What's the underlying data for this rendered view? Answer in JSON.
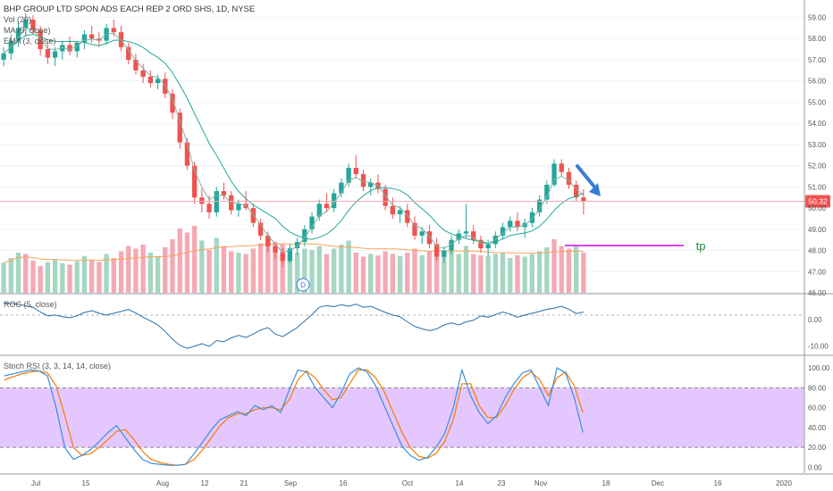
{
  "header": {
    "title": "BHP GROUP LTD SPON ADS EACH REP 2 ORD SHS, 1D, NYSE",
    "indicators": [
      "Vol (20)",
      "MA (9, close)",
      "EMA (3, close)"
    ]
  },
  "colors": {
    "up": "#26a69a",
    "down": "#ef5350",
    "vol_up": "#a5d6c1",
    "vol_down": "#f4a9b4",
    "ma": "#26a69a",
    "vol_ma": "#f7a35c",
    "price_line": "#f4a9b4",
    "price_tag": "#ef5350",
    "tp": "#e040fb",
    "arrow": "#3a7bd5",
    "stoch_band": "#e5c7ff",
    "stoch_k": "#3a8fd9",
    "stoch_d": "#f57c00",
    "roc": "#2a6fa8",
    "grid": "#f0f3fa"
  },
  "chart_data": [
    {
      "type": "candlestick",
      "panel": "price",
      "ylim": [
        46,
        59.4
      ],
      "y_ticks": [
        "59.00",
        "58.00",
        "57.00",
        "56.00",
        "55.00",
        "54.00",
        "53.00",
        "52.00",
        "51.00",
        "50.00",
        "49.00",
        "48.00",
        "47.00",
        "46.00"
      ],
      "x_ticks": [
        "Jul",
        "15",
        "Aug",
        "12",
        "21",
        "Sep",
        "16",
        "Oct",
        "14",
        "23",
        "Nov",
        "18",
        "Dec",
        "16",
        "2020"
      ],
      "last_price": "50.32",
      "annotation": "tp",
      "marker": "D",
      "candles": [
        [
          57.0,
          57.6,
          56.7,
          57.3
        ],
        [
          57.3,
          58.2,
          57.0,
          57.9
        ],
        [
          57.9,
          58.8,
          57.6,
          58.5
        ],
        [
          58.5,
          59.2,
          58.1,
          58.9
        ],
        [
          58.9,
          59.1,
          58.2,
          58.4
        ],
        [
          58.4,
          58.6,
          57.2,
          57.5
        ],
        [
          57.5,
          57.8,
          56.8,
          57.1
        ],
        [
          57.1,
          57.6,
          56.7,
          57.4
        ],
        [
          57.4,
          57.9,
          57.0,
          57.7
        ],
        [
          57.7,
          58.1,
          57.2,
          57.4
        ],
        [
          57.4,
          57.9,
          57.1,
          57.8
        ],
        [
          57.8,
          58.4,
          57.5,
          58.2
        ],
        [
          58.2,
          58.6,
          57.8,
          58.0
        ],
        [
          58.0,
          58.3,
          57.6,
          57.9
        ],
        [
          57.9,
          58.7,
          57.7,
          58.5
        ],
        [
          58.5,
          58.9,
          58.1,
          58.3
        ],
        [
          58.3,
          58.6,
          57.4,
          57.6
        ],
        [
          57.6,
          57.8,
          56.8,
          57.0
        ],
        [
          57.0,
          57.3,
          56.3,
          56.5
        ],
        [
          56.5,
          56.8,
          55.9,
          56.2
        ],
        [
          56.2,
          56.5,
          55.7,
          55.9
        ],
        [
          55.9,
          56.3,
          55.6,
          56.1
        ],
        [
          56.1,
          56.4,
          55.2,
          55.4
        ],
        [
          55.4,
          55.6,
          54.2,
          54.5
        ],
        [
          54.5,
          54.7,
          52.8,
          53.1
        ],
        [
          53.1,
          53.3,
          51.8,
          52.0
        ],
        [
          52.0,
          52.2,
          50.2,
          50.5
        ],
        [
          50.5,
          50.9,
          49.8,
          50.2
        ],
        [
          50.2,
          50.6,
          49.5,
          49.8
        ],
        [
          49.8,
          51.0,
          49.6,
          50.8
        ],
        [
          50.8,
          51.2,
          50.4,
          50.6
        ],
        [
          50.6,
          50.8,
          49.7,
          49.9
        ],
        [
          49.9,
          50.4,
          49.6,
          50.2
        ],
        [
          50.2,
          50.8,
          49.9,
          50.0
        ],
        [
          50.0,
          50.2,
          49.1,
          49.3
        ],
        [
          49.3,
          49.5,
          48.5,
          48.7
        ],
        [
          48.7,
          48.9,
          47.9,
          48.2
        ],
        [
          48.2,
          48.4,
          47.6,
          47.9
        ],
        [
          47.9,
          48.1,
          47.2,
          47.5
        ],
        [
          47.5,
          48.3,
          47.4,
          48.1
        ],
        [
          48.1,
          48.6,
          47.8,
          48.4
        ],
        [
          48.4,
          49.2,
          48.2,
          49.0
        ],
        [
          49.0,
          49.8,
          48.8,
          49.6
        ],
        [
          49.6,
          50.4,
          49.4,
          50.2
        ],
        [
          50.2,
          50.7,
          49.8,
          50.0
        ],
        [
          50.0,
          50.9,
          49.8,
          50.7
        ],
        [
          50.7,
          51.4,
          50.5,
          51.2
        ],
        [
          51.2,
          52.1,
          51.0,
          51.9
        ],
        [
          51.9,
          52.5,
          51.4,
          51.6
        ],
        [
          51.6,
          51.8,
          50.8,
          51.0
        ],
        [
          51.0,
          51.4,
          50.6,
          51.2
        ],
        [
          51.2,
          51.6,
          50.7,
          50.9
        ],
        [
          50.9,
          51.1,
          49.9,
          50.1
        ],
        [
          50.1,
          50.5,
          49.5,
          49.7
        ],
        [
          49.7,
          50.1,
          49.3,
          49.9
        ],
        [
          49.9,
          50.2,
          49.1,
          49.3
        ],
        [
          49.3,
          49.6,
          48.5,
          48.7
        ],
        [
          48.7,
          49.1,
          48.3,
          48.9
        ],
        [
          48.9,
          49.2,
          48.1,
          48.3
        ],
        [
          48.3,
          48.6,
          47.5,
          47.7
        ],
        [
          47.7,
          48.2,
          47.4,
          48.0
        ],
        [
          48.0,
          48.7,
          47.8,
          48.5
        ],
        [
          48.5,
          49.0,
          48.3,
          48.8
        ],
        [
          48.8,
          50.2,
          48.6,
          48.9
        ],
        [
          48.9,
          49.2,
          48.3,
          48.5
        ],
        [
          48.5,
          48.7,
          47.9,
          48.1
        ],
        [
          48.1,
          48.5,
          47.7,
          48.3
        ],
        [
          48.3,
          48.9,
          48.1,
          48.7
        ],
        [
          48.7,
          49.3,
          48.5,
          49.1
        ],
        [
          49.1,
          49.6,
          48.9,
          49.4
        ],
        [
          49.4,
          49.8,
          48.9,
          49.1
        ],
        [
          49.1,
          49.5,
          48.6,
          49.3
        ],
        [
          49.3,
          50.0,
          49.1,
          49.8
        ],
        [
          49.8,
          50.6,
          49.6,
          50.4
        ],
        [
          50.4,
          51.3,
          50.2,
          51.1
        ],
        [
          51.1,
          52.3,
          51.0,
          52.1
        ],
        [
          52.1,
          52.3,
          51.5,
          51.7
        ],
        [
          51.7,
          51.9,
          50.9,
          51.1
        ],
        [
          51.1,
          51.3,
          50.3,
          50.5
        ],
        [
          50.5,
          50.9,
          49.7,
          50.3
        ]
      ],
      "volume": [
        [
          45,
          1
        ],
        [
          52,
          1
        ],
        [
          60,
          1
        ],
        [
          58,
          0
        ],
        [
          48,
          0
        ],
        [
          40,
          0
        ],
        [
          46,
          1
        ],
        [
          50,
          1
        ],
        [
          44,
          1
        ],
        [
          42,
          0
        ],
        [
          47,
          1
        ],
        [
          55,
          1
        ],
        [
          49,
          0
        ],
        [
          46,
          0
        ],
        [
          58,
          1
        ],
        [
          52,
          0
        ],
        [
          62,
          0
        ],
        [
          70,
          0
        ],
        [
          66,
          0
        ],
        [
          72,
          0
        ],
        [
          60,
          1
        ],
        [
          55,
          1
        ],
        [
          68,
          0
        ],
        [
          80,
          0
        ],
        [
          96,
          0
        ],
        [
          90,
          0
        ],
        [
          100,
          0
        ],
        [
          78,
          1
        ],
        [
          64,
          0
        ],
        [
          82,
          1
        ],
        [
          70,
          0
        ],
        [
          62,
          0
        ],
        [
          60,
          1
        ],
        [
          58,
          0
        ],
        [
          66,
          0
        ],
        [
          74,
          0
        ],
        [
          82,
          0
        ],
        [
          76,
          0
        ],
        [
          72,
          0
        ],
        [
          62,
          1
        ],
        [
          60,
          1
        ],
        [
          66,
          1
        ],
        [
          64,
          1
        ],
        [
          70,
          1
        ],
        [
          58,
          0
        ],
        [
          66,
          1
        ],
        [
          72,
          1
        ],
        [
          78,
          1
        ],
        [
          60,
          0
        ],
        [
          54,
          0
        ],
        [
          58,
          1
        ],
        [
          56,
          0
        ],
        [
          62,
          0
        ],
        [
          58,
          0
        ],
        [
          55,
          1
        ],
        [
          60,
          0
        ],
        [
          66,
          0
        ],
        [
          56,
          1
        ],
        [
          62,
          0
        ],
        [
          72,
          0
        ],
        [
          60,
          1
        ],
        [
          64,
          1
        ],
        [
          58,
          1
        ],
        [
          70,
          1
        ],
        [
          58,
          0
        ],
        [
          56,
          0
        ],
        [
          55,
          1
        ],
        [
          58,
          1
        ],
        [
          60,
          1
        ],
        [
          52,
          1
        ],
        [
          56,
          0
        ],
        [
          54,
          1
        ],
        [
          58,
          1
        ],
        [
          62,
          1
        ],
        [
          68,
          1
        ],
        [
          80,
          0
        ],
        [
          70,
          0
        ],
        [
          66,
          0
        ],
        [
          72,
          1
        ],
        [
          60,
          0
        ]
      ]
    },
    {
      "type": "line",
      "panel": "ROC (5, close)",
      "ylim": [
        -13,
        9
      ],
      "y_ticks": [
        "0.00",
        "-10.00"
      ],
      "values": [
        6.5,
        6.2,
        6.0,
        5.4,
        4.8,
        3.0,
        1.5,
        1.8,
        1.2,
        0.8,
        1.5,
        2.8,
        3.5,
        2.5,
        1.8,
        2.5,
        3.2,
        4.0,
        2.6,
        1.0,
        -0.5,
        -2.0,
        -4.5,
        -7.5,
        -9.8,
        -11.0,
        -10.2,
        -9.2,
        -10.3,
        -8.0,
        -8.5,
        -7.0,
        -6.0,
        -6.8,
        -5.5,
        -4.0,
        -3.0,
        -5.5,
        -6.5,
        -4.8,
        -3.0,
        -0.5,
        2.0,
        4.8,
        5.5,
        5.0,
        5.8,
        5.2,
        6.0,
        4.8,
        5.2,
        4.0,
        2.8,
        1.8,
        1.2,
        -0.8,
        -2.5,
        -3.5,
        -4.2,
        -3.5,
        -2.0,
        -1.2,
        -2.0,
        -0.8,
        -0.2,
        1.5,
        1.0,
        2.0,
        3.0,
        2.2,
        1.0,
        1.8,
        2.5,
        3.2,
        4.0,
        4.5,
        5.2,
        4.0,
        2.4,
        3.0
      ]
    },
    {
      "type": "line",
      "panel": "Stoch RSI (3, 3, 14, 14, close)",
      "ylim": [
        -5,
        110
      ],
      "y_ticks": [
        "100.00",
        "80.00",
        "60.00",
        "40.00",
        "20.00",
        "0.00"
      ],
      "band": [
        20,
        80
      ],
      "series": [
        {
          "name": "K",
          "values": [
            92,
            94,
            96,
            98,
            97,
            92,
            60,
            20,
            8,
            12,
            18,
            26,
            35,
            42,
            30,
            18,
            8,
            4,
            3,
            2,
            2,
            3,
            14,
            26,
            38,
            48,
            52,
            56,
            52,
            62,
            58,
            62,
            55,
            78,
            98,
            96,
            80,
            70,
            60,
            75,
            94,
            100,
            96,
            82,
            62,
            42,
            22,
            12,
            7,
            10,
            20,
            34,
            60,
            98,
            72,
            55,
            44,
            52,
            70,
            84,
            95,
            98,
            80,
            62,
            100,
            95,
            70,
            35
          ]
        },
        {
          "name": "D",
          "values": [
            88,
            91,
            94,
            96,
            97,
            95,
            82,
            52,
            20,
            12,
            14,
            20,
            28,
            36,
            38,
            28,
            16,
            8,
            5,
            3,
            2,
            3,
            8,
            18,
            30,
            42,
            50,
            54,
            54,
            58,
            60,
            60,
            58,
            68,
            88,
            97,
            90,
            78,
            68,
            70,
            84,
            98,
            98,
            90,
            76,
            56,
            36,
            20,
            11,
            9,
            14,
            26,
            48,
            84,
            84,
            62,
            50,
            50,
            62,
            78,
            90,
            96,
            88,
            72,
            90,
            96,
            82,
            55
          ]
        }
      ]
    }
  ]
}
